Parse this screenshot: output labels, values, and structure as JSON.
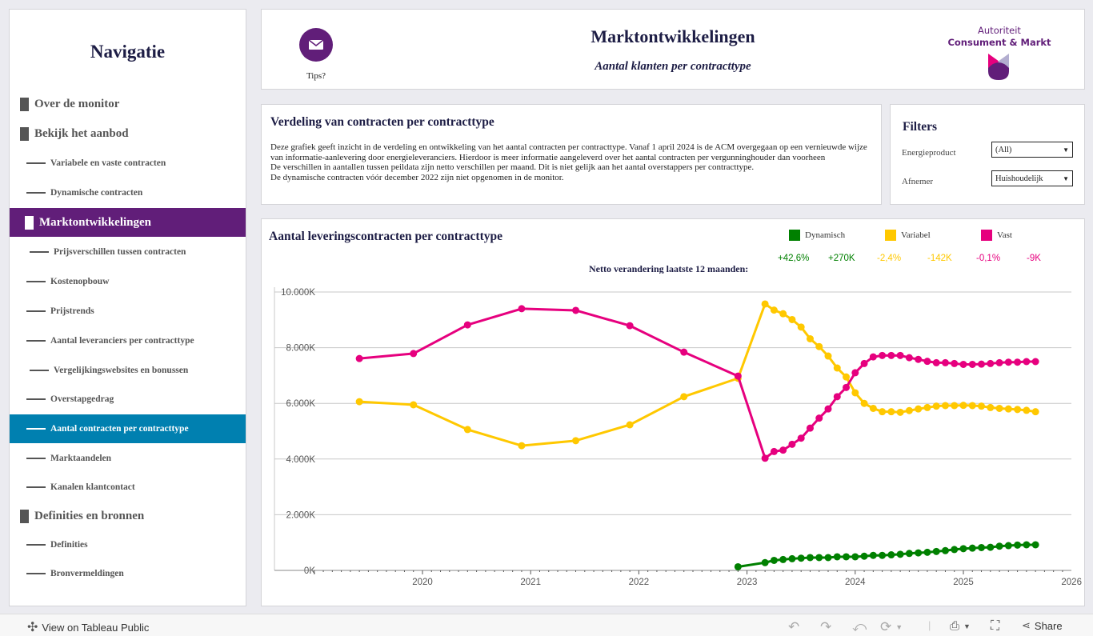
{
  "sidebar": {
    "title": "Navigatie",
    "items": [
      {
        "label": "Over de monitor",
        "level": 1
      },
      {
        "label": "Bekijk het aanbod",
        "level": 1
      },
      {
        "label": "Variabele en vaste contracten",
        "level": 2
      },
      {
        "label": "Dynamische contracten",
        "level": 2
      },
      {
        "label": "Marktontwikkelingen",
        "level": 1,
        "active": true
      },
      {
        "label": "Prijsverschillen tussen contracten",
        "level": 2
      },
      {
        "label": "Kostenopbouw",
        "level": 2
      },
      {
        "label": "Prijstrends",
        "level": 2
      },
      {
        "label": "Aantal leveranciers per contracttype",
        "level": 2
      },
      {
        "label": "Vergelijkingswebsites en bonussen",
        "level": 2
      },
      {
        "label": "Overstapgedrag",
        "level": 2
      },
      {
        "label": "Aantal contracten per contracttype",
        "level": 2,
        "selected": true
      },
      {
        "label": "Marktaandelen",
        "level": 2
      },
      {
        "label": "Kanalen klantcontact",
        "level": 2
      },
      {
        "label": "Definities en bronnen",
        "level": 1
      },
      {
        "label": "Definities",
        "level": 2
      },
      {
        "label": "Bronvermeldingen",
        "level": 2
      }
    ]
  },
  "header": {
    "tips_label": "Tips?",
    "tips_icon": "envelope-icon",
    "title": "Marktontwikkelingen",
    "subtitle": "Aantal klanten per contracttype",
    "logo_line1": "Autoriteit",
    "logo_line2": "Consument & Markt"
  },
  "description": {
    "title": "Verdeling van contracten per contracttype",
    "lines": [
      "Deze grafiek geeft inzicht in de verdeling en ontwikkeling van het aantal contracten per contracttype. Vanaf 1 april 2024 is de ACM overgegaan op een vernieuwde wijze van informatie-aanlevering door energieleveranciers. Hierdoor is meer informatie aangeleverd over het aantal contracten per vergunninghouder dan voorheen",
      "De verschillen in aantallen tussen peildata zijn netto verschillen per maand. Dit is niet gelijk aan het aantal overstappers per contracttype.",
      "De dynamische contracten vóór december 2022 zijn niet opgenomen in de monitor."
    ]
  },
  "filters": {
    "title": "Filters",
    "energieproduct_label": "Energieproduct",
    "energieproduct_value": "(All)",
    "afnemer_label": "Afnemer",
    "afnemer_value": "Huishoudelijk"
  },
  "stats": {
    "netto_label": "Netto verandering laatste 12 maanden:",
    "dynamisch_pct": "+42,6%",
    "dynamisch_abs": "+270K",
    "variabel_pct": "-2,4%",
    "variabel_abs": "-142K",
    "vast_pct": "-0,1%",
    "vast_abs": "-9K"
  },
  "chart_data": {
    "type": "line",
    "title": "Aantal leveringscontracten per contracttype",
    "ylim": [
      0,
      10000
    ],
    "yticks": [
      {
        "v": 0,
        "label": "0K"
      },
      {
        "v": 2000,
        "label": "2.000K"
      },
      {
        "v": 4000,
        "label": "4.000K"
      },
      {
        "v": 6000,
        "label": "6.000K"
      },
      {
        "v": 8000,
        "label": "8.000K"
      },
      {
        "v": 10000,
        "label": "10.000K"
      }
    ],
    "xticks": [
      "2020",
      "2021",
      "2022",
      "2023",
      "2024",
      "2025",
      "2026"
    ],
    "grid": true,
    "legend_position": "top-right",
    "series": [
      {
        "name": "Dynamisch",
        "color": "#008000",
        "x": [
          "2022-12",
          "2023-03",
          "2023-04",
          "2023-05",
          "2023-06",
          "2023-07",
          "2023-08",
          "2023-09",
          "2023-10",
          "2023-11",
          "2023-12",
          "2024-01",
          "2024-02",
          "2024-03",
          "2024-04",
          "2024-05",
          "2024-06",
          "2024-07",
          "2024-08",
          "2024-09",
          "2024-10",
          "2024-11",
          "2024-12",
          "2025-01",
          "2025-02",
          "2025-03",
          "2025-04",
          "2025-05",
          "2025-06",
          "2025-07",
          "2025-08",
          "2025-09"
        ],
        "values": [
          130,
          280,
          360,
          390,
          420,
          440,
          460,
          460,
          460,
          490,
          490,
          490,
          510,
          540,
          540,
          560,
          580,
          610,
          630,
          650,
          680,
          710,
          750,
          780,
          800,
          820,
          830,
          870,
          890,
          910,
          920,
          920
        ]
      },
      {
        "name": "Variabel",
        "color": "#ffc800",
        "x": [
          "2019-06",
          "2019-12",
          "2020-06",
          "2020-12",
          "2021-06",
          "2021-12",
          "2022-06",
          "2022-12",
          "2023-03",
          "2023-04",
          "2023-05",
          "2023-06",
          "2023-07",
          "2023-08",
          "2023-09",
          "2023-10",
          "2023-11",
          "2023-12",
          "2024-01",
          "2024-02",
          "2024-03",
          "2024-04",
          "2024-05",
          "2024-06",
          "2024-07",
          "2024-08",
          "2024-09",
          "2024-10",
          "2024-11",
          "2024-12",
          "2025-01",
          "2025-02",
          "2025-03",
          "2025-04",
          "2025-05",
          "2025-06",
          "2025-07",
          "2025-08",
          "2025-09"
        ],
        "values": [
          6060,
          5950,
          5060,
          4480,
          4660,
          5230,
          6240,
          6900,
          9570,
          9350,
          9220,
          9010,
          8740,
          8320,
          8040,
          7700,
          7270,
          6950,
          6380,
          6000,
          5820,
          5700,
          5700,
          5680,
          5740,
          5800,
          5850,
          5900,
          5920,
          5920,
          5930,
          5920,
          5900,
          5850,
          5820,
          5800,
          5780,
          5750,
          5700
        ]
      },
      {
        "name": "Vast",
        "color": "#e6007e",
        "x": [
          "2019-06",
          "2019-12",
          "2020-06",
          "2020-12",
          "2021-06",
          "2021-12",
          "2022-06",
          "2022-12",
          "2023-03",
          "2023-04",
          "2023-05",
          "2023-06",
          "2023-07",
          "2023-08",
          "2023-09",
          "2023-10",
          "2023-11",
          "2023-12",
          "2024-01",
          "2024-02",
          "2024-03",
          "2024-04",
          "2024-05",
          "2024-06",
          "2024-07",
          "2024-08",
          "2024-09",
          "2024-10",
          "2024-11",
          "2024-12",
          "2025-01",
          "2025-02",
          "2025-03",
          "2025-04",
          "2025-05",
          "2025-06",
          "2025-07",
          "2025-08",
          "2025-09"
        ],
        "values": [
          7610,
          7790,
          8820,
          9400,
          9340,
          8790,
          7840,
          6980,
          4030,
          4270,
          4320,
          4530,
          4750,
          5110,
          5470,
          5800,
          6240,
          6570,
          7100,
          7430,
          7670,
          7720,
          7720,
          7720,
          7640,
          7580,
          7510,
          7460,
          7460,
          7430,
          7400,
          7400,
          7410,
          7430,
          7460,
          7480,
          7480,
          7500,
          7500
        ]
      }
    ]
  },
  "bottombar": {
    "view_label": "View on Tableau Public",
    "share_label": "Share"
  }
}
